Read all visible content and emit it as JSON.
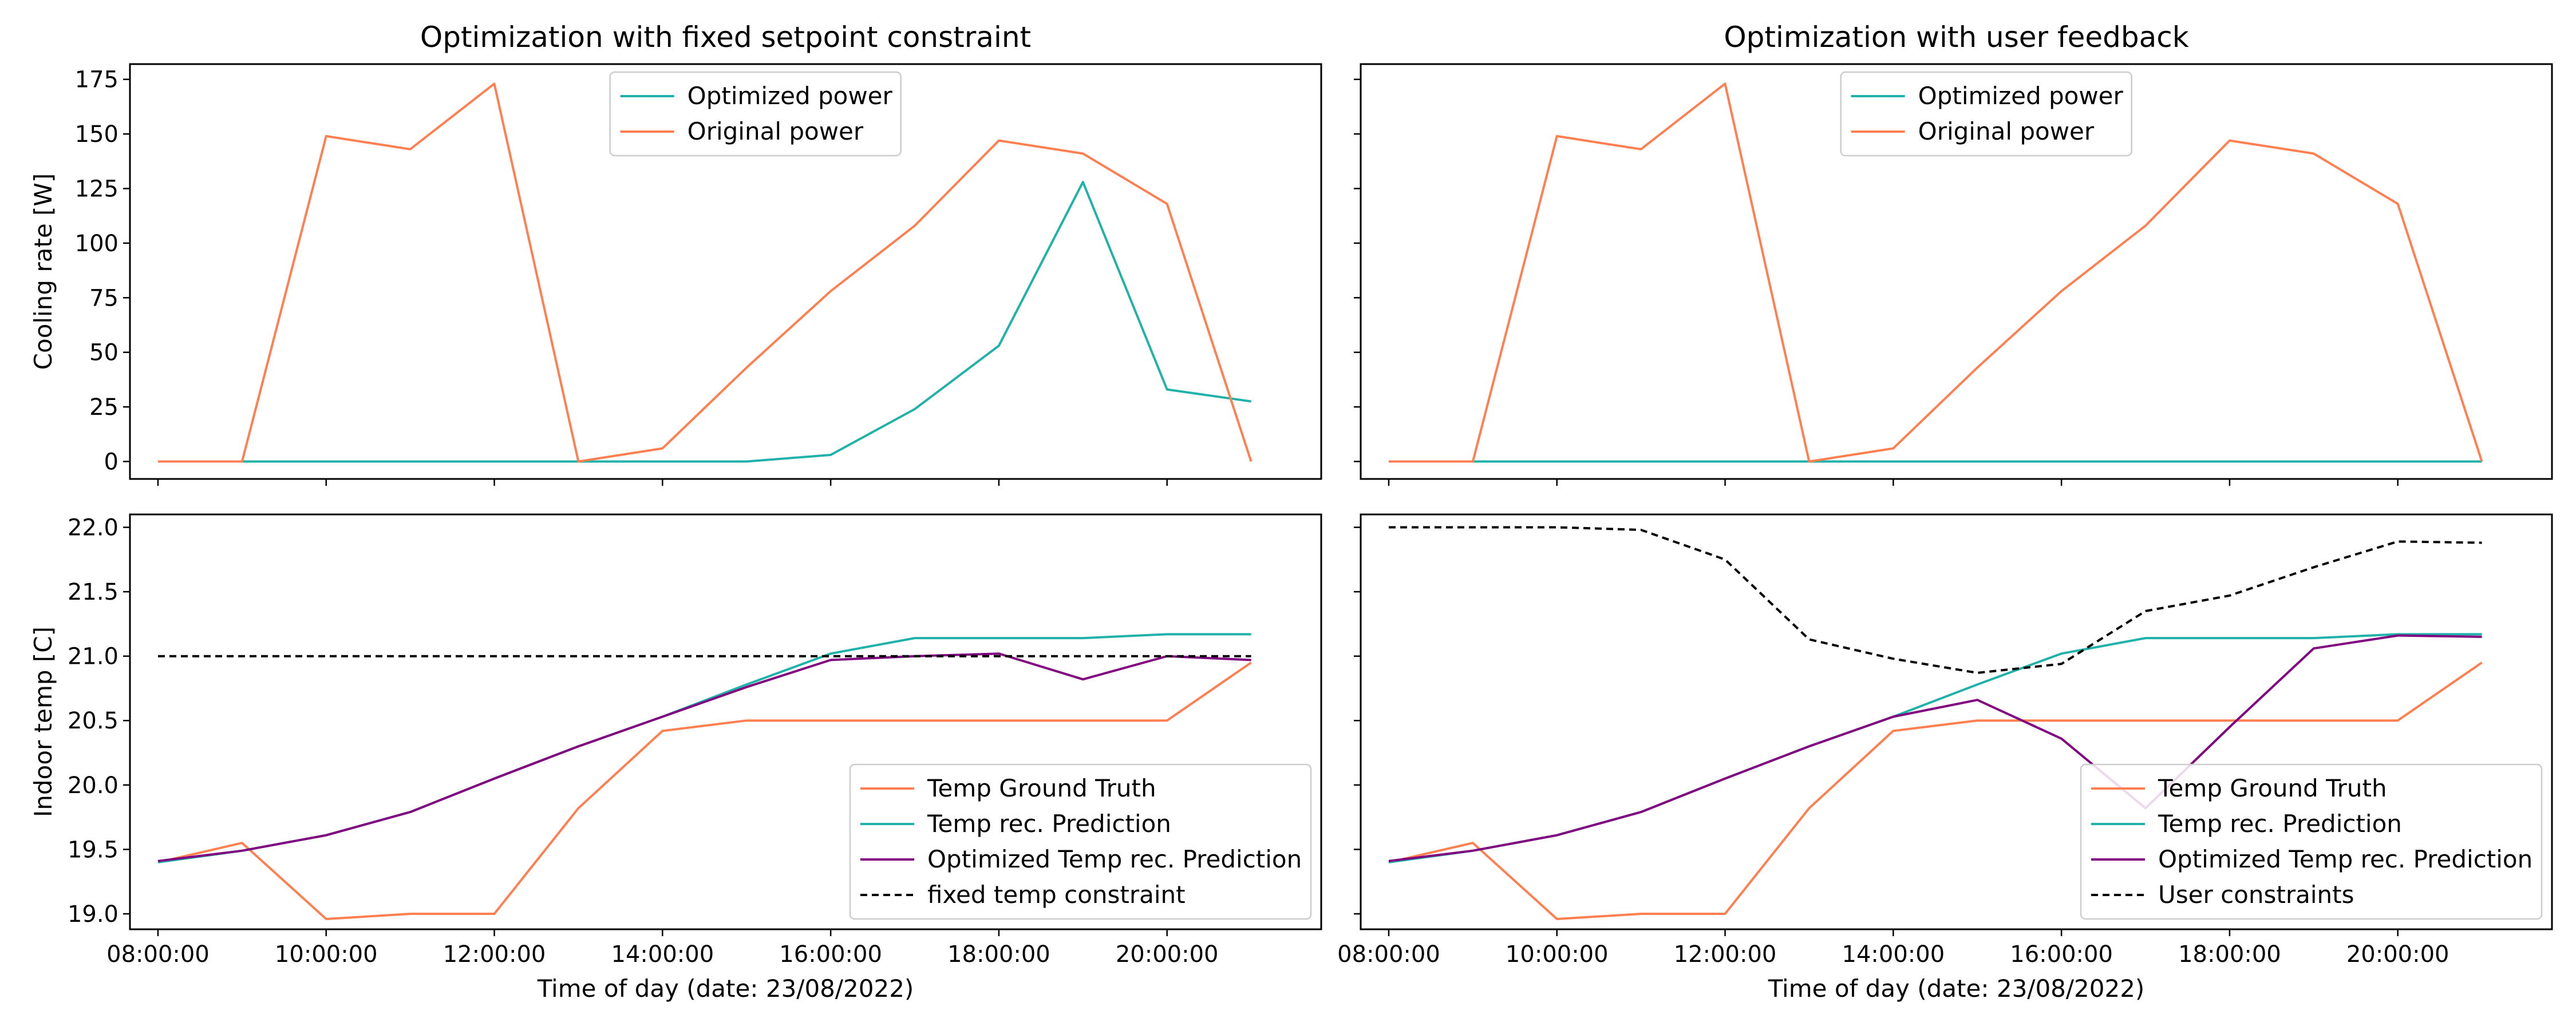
{
  "figure": {
    "x_ticks": [
      "08:00:00",
      "10:00:00",
      "12:00:00",
      "14:00:00",
      "16:00:00",
      "18:00:00",
      "20:00:00"
    ]
  },
  "chart_data": [
    {
      "type": "line",
      "title": "Optimization with fixed setpoint constraint",
      "xlabel": "",
      "ylabel": "Cooling rate [W]",
      "x": [
        "08:00:00",
        "09:00:00",
        "10:00:00",
        "11:00:00",
        "12:00:00",
        "13:00:00",
        "14:00:00",
        "15:00:00",
        "16:00:00",
        "17:00:00",
        "18:00:00",
        "19:00:00",
        "20:00:00",
        "21:00:00"
      ],
      "xlim": [
        "07:40:00",
        "21:50:00"
      ],
      "ylim": [
        -8,
        182
      ],
      "yticks": [
        0,
        25,
        50,
        75,
        100,
        125,
        150,
        175
      ],
      "legend_position": "top-center",
      "series": [
        {
          "name": "Optimized power",
          "color": "#20b2aa",
          "dash": "",
          "values": [
            0,
            0,
            0,
            0,
            0,
            0,
            0,
            0,
            3,
            24,
            53,
            128,
            33,
            27.5
          ]
        },
        {
          "name": "Original power",
          "color": "#ff7f50",
          "dash": "",
          "values": [
            0,
            0,
            149,
            143,
            173,
            0,
            6,
            43,
            78,
            108,
            147,
            141,
            118,
            0
          ]
        }
      ]
    },
    {
      "type": "line",
      "title": "Optimization with user feedback",
      "xlabel": "",
      "ylabel": "",
      "x": [
        "08:00:00",
        "09:00:00",
        "10:00:00",
        "11:00:00",
        "12:00:00",
        "13:00:00",
        "14:00:00",
        "15:00:00",
        "16:00:00",
        "17:00:00",
        "18:00:00",
        "19:00:00",
        "20:00:00",
        "21:00:00"
      ],
      "xlim": [
        "07:40:00",
        "21:50:00"
      ],
      "ylim": [
        -8,
        182
      ],
      "yticks": [
        0,
        25,
        50,
        75,
        100,
        125,
        150,
        175
      ],
      "legend_position": "top-center",
      "series": [
        {
          "name": "Optimized power",
          "color": "#20b2aa",
          "dash": "",
          "values": [
            0,
            0,
            0,
            0,
            0,
            0,
            0,
            0,
            0,
            0,
            0,
            0,
            0,
            0
          ]
        },
        {
          "name": "Original power",
          "color": "#ff7f50",
          "dash": "",
          "values": [
            0,
            0,
            149,
            143,
            173,
            0,
            6,
            43,
            78,
            108,
            147,
            141,
            118,
            0
          ]
        }
      ]
    },
    {
      "type": "line",
      "title": "",
      "xlabel": "Time of day (date: 23/08/2022)",
      "ylabel": "Indoor temp [C]",
      "x": [
        "08:00:00",
        "09:00:00",
        "10:00:00",
        "11:00:00",
        "12:00:00",
        "13:00:00",
        "14:00:00",
        "15:00:00",
        "16:00:00",
        "17:00:00",
        "18:00:00",
        "19:00:00",
        "20:00:00",
        "21:00:00"
      ],
      "xlim": [
        "07:40:00",
        "21:50:00"
      ],
      "ylim": [
        18.88,
        22.1
      ],
      "yticks": [
        19.0,
        19.5,
        20.0,
        20.5,
        21.0,
        21.5,
        22.0
      ],
      "ytick_labels": [
        "19.0",
        "19.5",
        "20.0",
        "20.5",
        "21.0",
        "21.5",
        "22.0"
      ],
      "legend_position": "lower-right",
      "series": [
        {
          "name": "Temp Ground Truth",
          "color": "#ff7f50",
          "dash": "",
          "values": [
            19.4,
            19.55,
            18.96,
            19.0,
            19.0,
            19.82,
            20.42,
            20.5,
            20.5,
            20.5,
            20.5,
            20.5,
            20.5,
            20.95
          ]
        },
        {
          "name": "Temp rec. Prediction",
          "color": "#20b2aa",
          "dash": "",
          "values": [
            19.4,
            19.49,
            19.61,
            19.79,
            20.05,
            20.3,
            20.53,
            20.78,
            21.02,
            21.14,
            21.14,
            21.14,
            21.17,
            21.17
          ]
        },
        {
          "name": "Optimized Temp rec. Prediction",
          "color": "#800080",
          "dash": "",
          "values": [
            19.41,
            19.49,
            19.61,
            19.79,
            20.05,
            20.3,
            20.53,
            20.76,
            20.97,
            21.0,
            21.02,
            20.82,
            21.0,
            20.97
          ]
        },
        {
          "name": "fixed temp constraint",
          "color": "#000000",
          "dash": "12,8",
          "values": [
            21,
            21,
            21,
            21,
            21,
            21,
            21,
            21,
            21,
            21,
            21,
            21,
            21,
            21
          ]
        }
      ]
    },
    {
      "type": "line",
      "title": "",
      "xlabel": "Time of day (date: 23/08/2022)",
      "ylabel": "",
      "x": [
        "08:00:00",
        "09:00:00",
        "10:00:00",
        "11:00:00",
        "12:00:00",
        "13:00:00",
        "14:00:00",
        "15:00:00",
        "16:00:00",
        "17:00:00",
        "18:00:00",
        "19:00:00",
        "20:00:00",
        "21:00:00"
      ],
      "xlim": [
        "07:40:00",
        "21:50:00"
      ],
      "ylim": [
        18.88,
        22.1
      ],
      "yticks": [
        19.0,
        19.5,
        20.0,
        20.5,
        21.0,
        21.5,
        22.0
      ],
      "legend_position": "lower-right",
      "series": [
        {
          "name": "Temp Ground Truth",
          "color": "#ff7f50",
          "dash": "",
          "values": [
            19.4,
            19.55,
            18.96,
            19.0,
            19.0,
            19.82,
            20.42,
            20.5,
            20.5,
            20.5,
            20.5,
            20.5,
            20.5,
            20.95
          ]
        },
        {
          "name": "Temp rec. Prediction",
          "color": "#20b2aa",
          "dash": "",
          "values": [
            19.4,
            19.49,
            19.61,
            19.79,
            20.05,
            20.3,
            20.53,
            20.78,
            21.02,
            21.14,
            21.14,
            21.14,
            21.17,
            21.17
          ]
        },
        {
          "name": "Optimized Temp rec. Prediction",
          "color": "#800080",
          "dash": "",
          "values": [
            19.41,
            19.49,
            19.61,
            19.79,
            20.05,
            20.3,
            20.53,
            20.66,
            20.36,
            19.82,
            20.45,
            21.06,
            21.16,
            21.15
          ]
        },
        {
          "name": "User constraints",
          "color": "#000000",
          "dash": "12,8",
          "values": [
            22.0,
            22.0,
            22.0,
            21.98,
            21.75,
            21.13,
            20.98,
            20.87,
            20.94,
            21.35,
            21.47,
            21.69,
            21.89,
            21.88
          ]
        }
      ]
    }
  ]
}
